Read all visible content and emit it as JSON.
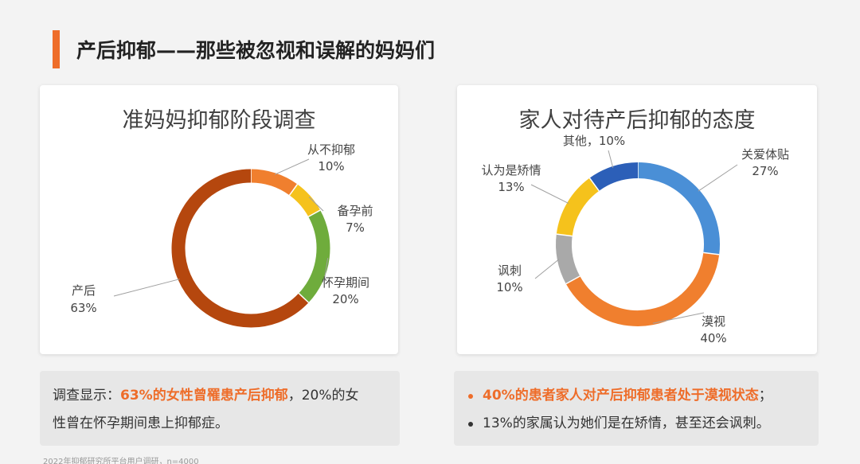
{
  "page": {
    "title": "产后抑郁——那些被忽视和误解的妈妈们",
    "accent_color": "#ee6d2a",
    "footnote": "2022年抑郁研究所平台用户调研，n=4000"
  },
  "left_note": {
    "prefix": "调查显示：",
    "highlight": "63%的女性曾罹患产后抑郁",
    "rest_line1": "，20%的女",
    "line2": "性曾在怀孕期间患上抑郁症。"
  },
  "right_note": {
    "bullet1": "40%的患者家人对产后抑郁患者处于漠视状态",
    "bullet1_tail": "；",
    "bullet2": "13%的家属认为她们是在矫情，甚至还会讽刺。",
    "bullet1_color": "#ee6d2a",
    "bullet2_color": "#333333"
  },
  "chart_data": [
    {
      "type": "pie",
      "donut": true,
      "title": "准妈妈抑郁阶段调查",
      "categories": [
        "从不抑郁",
        "备孕前",
        "怀孕期间",
        "产后"
      ],
      "values": [
        10,
        7,
        20,
        63
      ],
      "value_labels": [
        "10%",
        "7%",
        "20%",
        "63%"
      ],
      "colors": [
        "#f07f2e",
        "#f5c21c",
        "#6fac3c",
        "#b5470e"
      ]
    },
    {
      "type": "pie",
      "donut": true,
      "title": "家人对待产后抑郁的态度",
      "categories": [
        "关爱体贴",
        "漠视",
        "讽刺",
        "认为是矫情",
        "其他"
      ],
      "values": [
        27,
        40,
        10,
        13,
        10
      ],
      "value_labels": [
        "27%",
        "40%",
        "10%",
        "13%",
        "10%"
      ],
      "colors": [
        "#4a8fd6",
        "#f07f2e",
        "#a9a9a9",
        "#f5c21c",
        "#2c5fb8"
      ],
      "label_separator": "，"
    }
  ]
}
